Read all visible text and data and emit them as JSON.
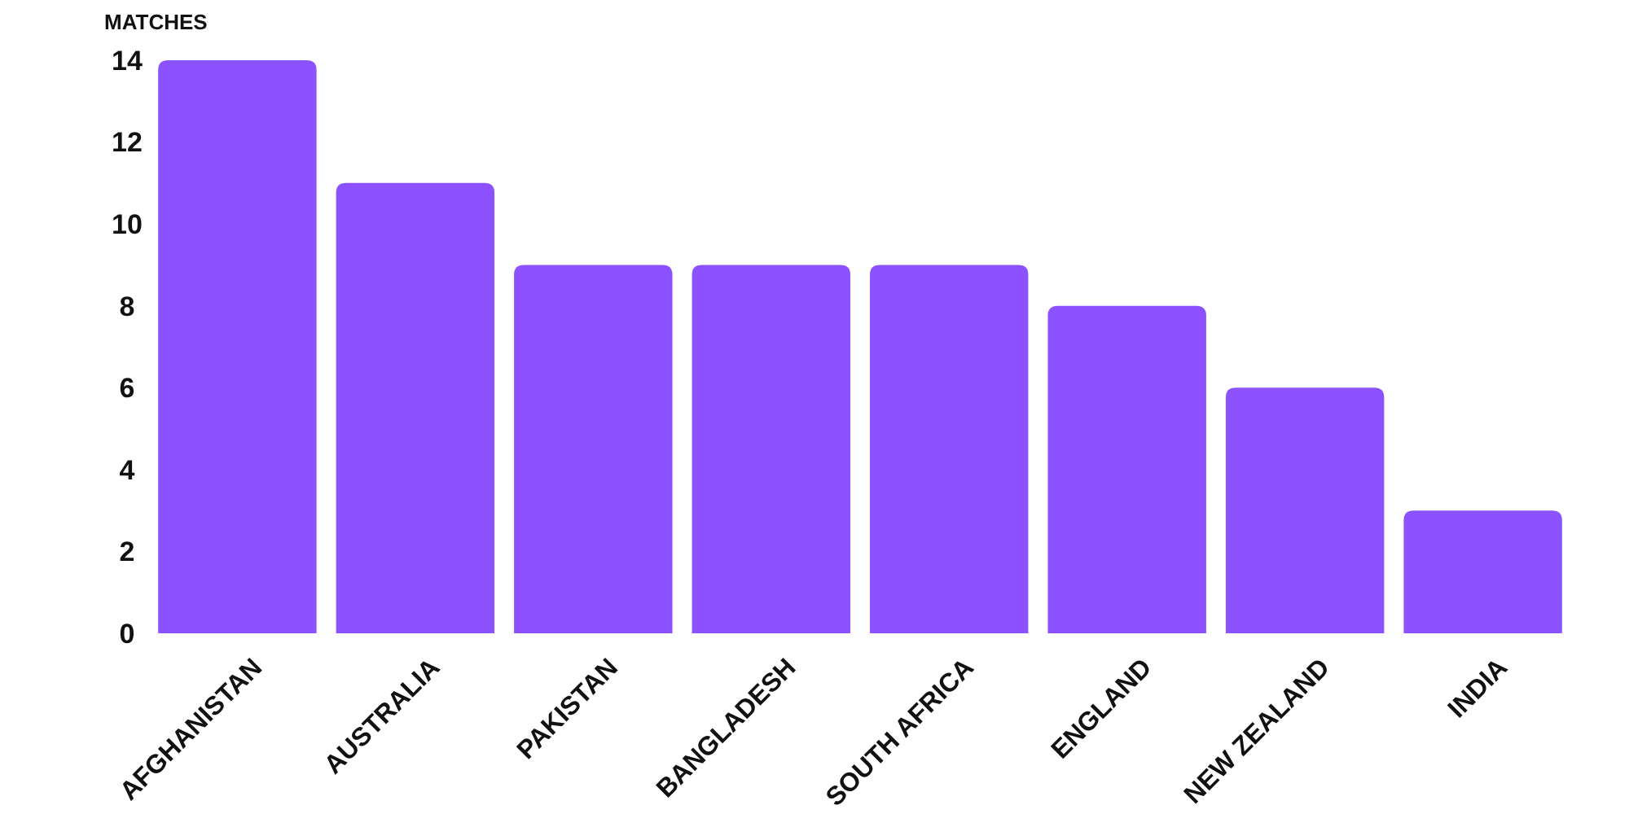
{
  "chart_data": {
    "type": "bar",
    "ylabel": "MATCHES",
    "categories": [
      "AFGHANISTAN",
      "AUSTRALIA",
      "PAKISTAN",
      "BANGLADESH",
      "SOUTH AFRICA",
      "ENGLAND",
      "NEW ZEALAND",
      "INDIA"
    ],
    "values": [
      14,
      11,
      9,
      9,
      9,
      8,
      6,
      3
    ],
    "color": "#8c52ff",
    "ylim": [
      0,
      14
    ],
    "yticks": [
      0,
      2,
      4,
      6,
      8,
      10,
      12,
      14
    ],
    "grid": false
  }
}
